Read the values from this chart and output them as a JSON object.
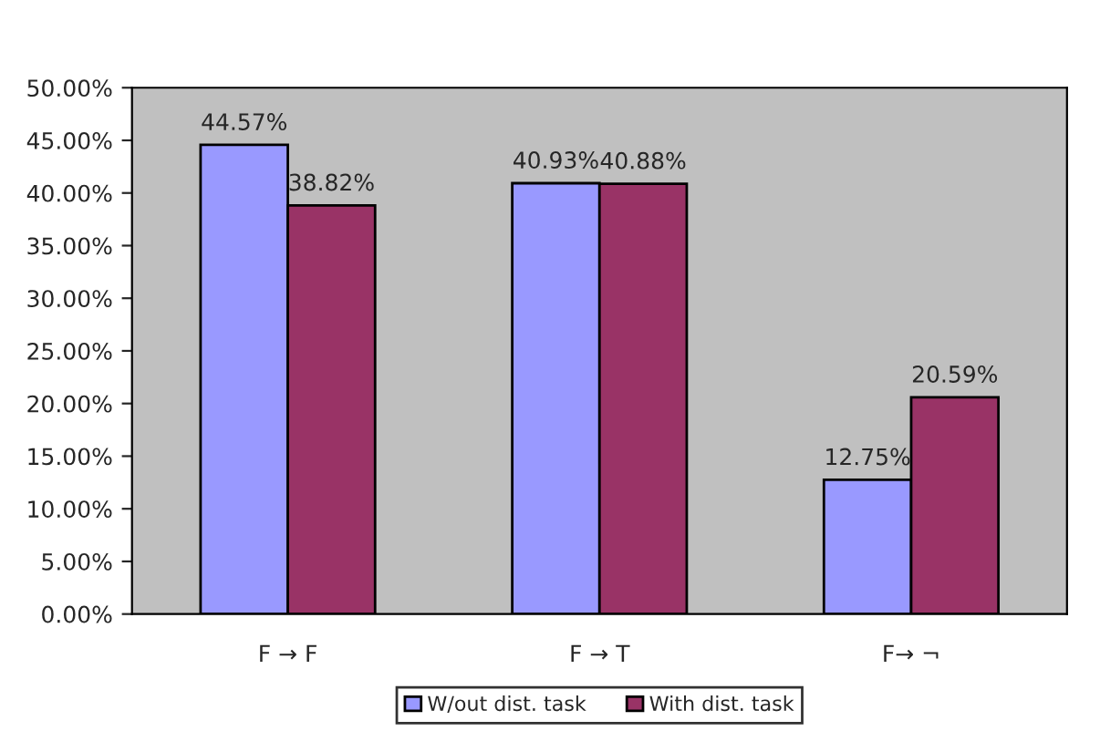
{
  "chart_data": {
    "type": "bar",
    "categories": [
      "F → F",
      "F → T",
      "F→ ¬"
    ],
    "series": [
      {
        "name": "W/out dist. task",
        "color": "#9999ff",
        "values": [
          44.57,
          40.93,
          12.75
        ],
        "value_labels": [
          "44.57%",
          "40.93%",
          "12.75%"
        ]
      },
      {
        "name": "With dist. task",
        "color": "#993366",
        "values": [
          38.82,
          40.88,
          20.59
        ],
        "value_labels": [
          "38.82%",
          "40.88%",
          "20.59%"
        ]
      }
    ],
    "ylim": [
      0,
      50
    ],
    "yticks": [
      {
        "value": 0,
        "label": "0.00%"
      },
      {
        "value": 5,
        "label": "5.00%"
      },
      {
        "value": 10,
        "label": "10.00%"
      },
      {
        "value": 15,
        "label": "15.00%"
      },
      {
        "value": 20,
        "label": "20.00%"
      },
      {
        "value": 25,
        "label": "25.00%"
      },
      {
        "value": 30,
        "label": "30.00%"
      },
      {
        "value": 35,
        "label": "35.00%"
      },
      {
        "value": 40,
        "label": "40.00%"
      },
      {
        "value": 45,
        "label": "45.00%"
      },
      {
        "value": 50,
        "label": "50.00%"
      }
    ],
    "grid": false,
    "legend": "bottom"
  }
}
